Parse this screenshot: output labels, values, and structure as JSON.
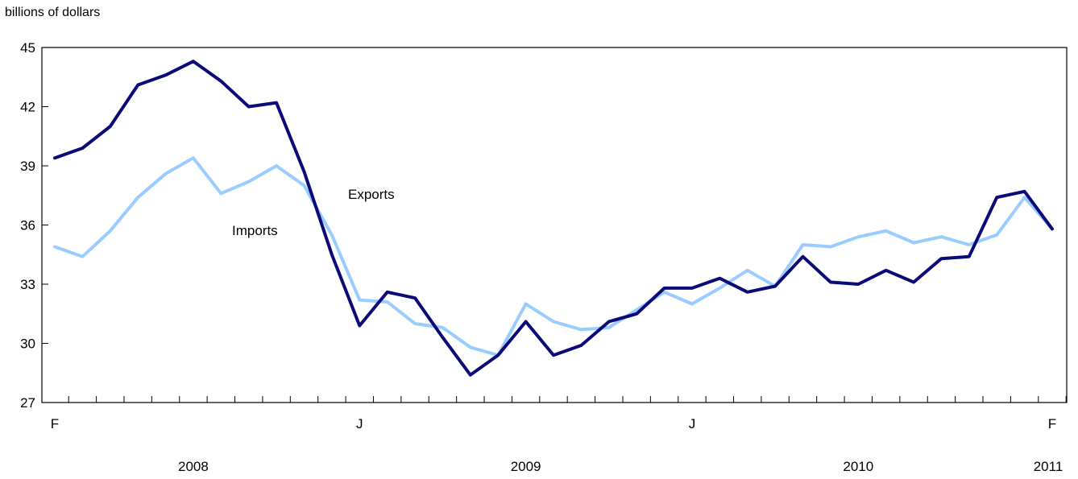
{
  "chart_data": {
    "type": "line",
    "ylabel": "billions of dollars",
    "ylim": [
      27,
      45
    ],
    "yticks": [
      27,
      30,
      33,
      36,
      39,
      42,
      45
    ],
    "x": [
      "2008-02",
      "2008-03",
      "2008-04",
      "2008-05",
      "2008-06",
      "2008-07",
      "2008-08",
      "2008-09",
      "2008-10",
      "2008-11",
      "2008-12",
      "2009-01",
      "2009-02",
      "2009-03",
      "2009-04",
      "2009-05",
      "2009-06",
      "2009-07",
      "2009-08",
      "2009-09",
      "2009-10",
      "2009-11",
      "2009-12",
      "2010-01",
      "2010-02",
      "2010-03",
      "2010-04",
      "2010-05",
      "2010-06",
      "2010-07",
      "2010-08",
      "2010-09",
      "2010-10",
      "2010-11",
      "2010-12",
      "2011-01",
      "2011-02"
    ],
    "month_labels": [
      {
        "index": 0,
        "text": "F"
      },
      {
        "index": 11,
        "text": "J"
      },
      {
        "index": 23,
        "text": "J"
      },
      {
        "index": 36,
        "text": "F"
      }
    ],
    "year_labels": [
      {
        "index": 5,
        "text": "2008"
      },
      {
        "index": 17,
        "text": "2009"
      },
      {
        "index": 29,
        "text": "2010"
      },
      {
        "index": 36,
        "text": "2011"
      }
    ],
    "series": [
      {
        "name": "Exports",
        "color": "#0a0a78",
        "values": [
          39.4,
          39.9,
          41.0,
          43.1,
          43.6,
          44.3,
          43.3,
          42.0,
          42.2,
          38.7,
          34.5,
          30.9,
          32.6,
          32.3,
          30.3,
          28.4,
          29.4,
          31.1,
          29.4,
          29.9,
          31.1,
          31.5,
          32.8,
          32.8,
          33.3,
          32.6,
          32.9,
          34.4,
          33.1,
          33.0,
          33.7,
          33.1,
          34.3,
          34.4,
          37.4,
          37.7,
          35.8
        ]
      },
      {
        "name": "Imports",
        "color": "#99ccff",
        "values": [
          34.9,
          34.4,
          35.7,
          37.4,
          38.6,
          39.4,
          37.6,
          38.2,
          39.0,
          38.0,
          35.5,
          32.2,
          32.1,
          31.0,
          30.8,
          29.8,
          29.4,
          32.0,
          31.1,
          30.7,
          30.8,
          31.7,
          32.6,
          32.0,
          32.8,
          33.7,
          32.9,
          35.0,
          34.9,
          35.4,
          35.7,
          35.1,
          35.4,
          35.0,
          35.5,
          37.4,
          35.8
        ]
      }
    ]
  }
}
